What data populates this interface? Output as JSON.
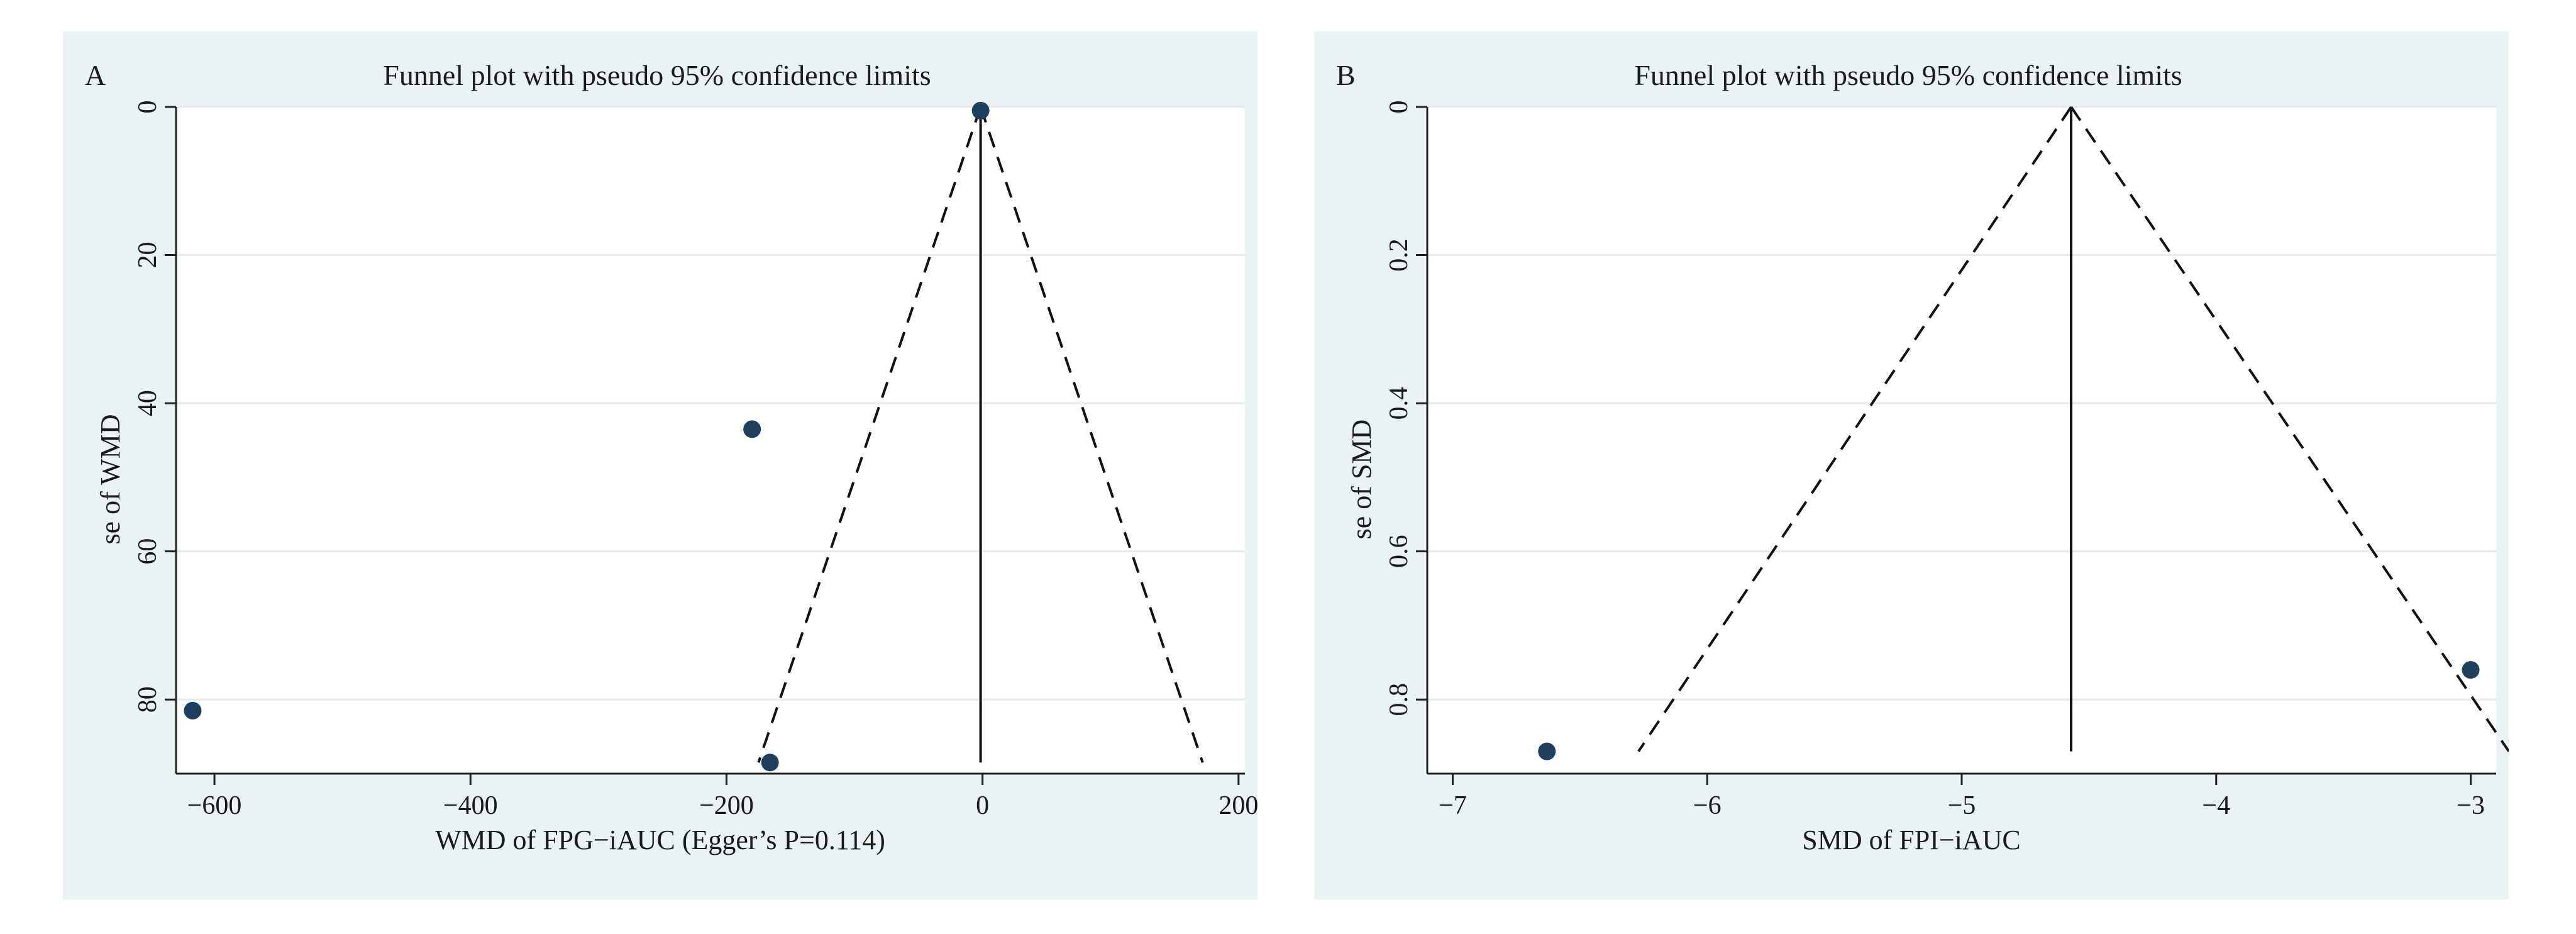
{
  "chart_data": [
    {
      "type": "scatter",
      "panel_label": "A",
      "title": "Funnel plot with pseudo 95% confidence limits",
      "xlabel": "WMD of FPG−iAUC (Egger’s P=0.114)",
      "ylabel": "se of WMD",
      "xlim": [
        -630,
        205
      ],
      "ylim": [
        90,
        0
      ],
      "y_reversed": true,
      "xticks": [
        -600,
        -400,
        -200,
        0,
        200
      ],
      "xtick_labels": [
        "−600",
        "−400",
        "−200",
        "0",
        "200"
      ],
      "yticks": [
        0,
        20,
        40,
        60,
        80
      ],
      "ytick_labels": [
        "0",
        "20",
        "40",
        "60",
        "80"
      ],
      "grid": true,
      "pooled_effect": -1.5,
      "funnel": {
        "apex": [
          -1.5,
          0
        ],
        "left": [
          -175,
          88.5
        ],
        "right": [
          172,
          88.5
        ]
      },
      "points": [
        {
          "x": -1.5,
          "y": 0.5
        },
        {
          "x": -180,
          "y": 43.5
        },
        {
          "x": -617,
          "y": 81.5
        },
        {
          "x": -166,
          "y": 88.5
        }
      ],
      "point_color": "#1f3f60"
    },
    {
      "type": "scatter",
      "panel_label": "B",
      "title": "Funnel plot with pseudo 95% confidence limits",
      "xlabel": "SMD of FPI−iAUC",
      "ylabel": "se of SMD",
      "xlim": [
        -7.1,
        -2.9
      ],
      "ylim": [
        0.9,
        0
      ],
      "y_reversed": true,
      "xticks": [
        -7,
        -6,
        -5,
        -4,
        -3
      ],
      "xtick_labels": [
        "−7",
        "−6",
        "−5",
        "−4",
        "−3"
      ],
      "yticks": [
        0,
        0.2,
        0.4,
        0.6,
        0.8
      ],
      "ytick_labels": [
        "0",
        "0.2",
        "0.4",
        "0.6",
        "0.8"
      ],
      "grid": true,
      "pooled_effect": -4.57,
      "funnel": {
        "apex": [
          -4.57,
          0
        ],
        "left": [
          -6.27,
          0.87
        ],
        "right": [
          -2.85,
          0.87
        ]
      },
      "points": [
        {
          "x": -6.63,
          "y": 0.87
        },
        {
          "x": -3.0,
          "y": 0.76
        }
      ],
      "point_color": "#1f3f60"
    }
  ]
}
